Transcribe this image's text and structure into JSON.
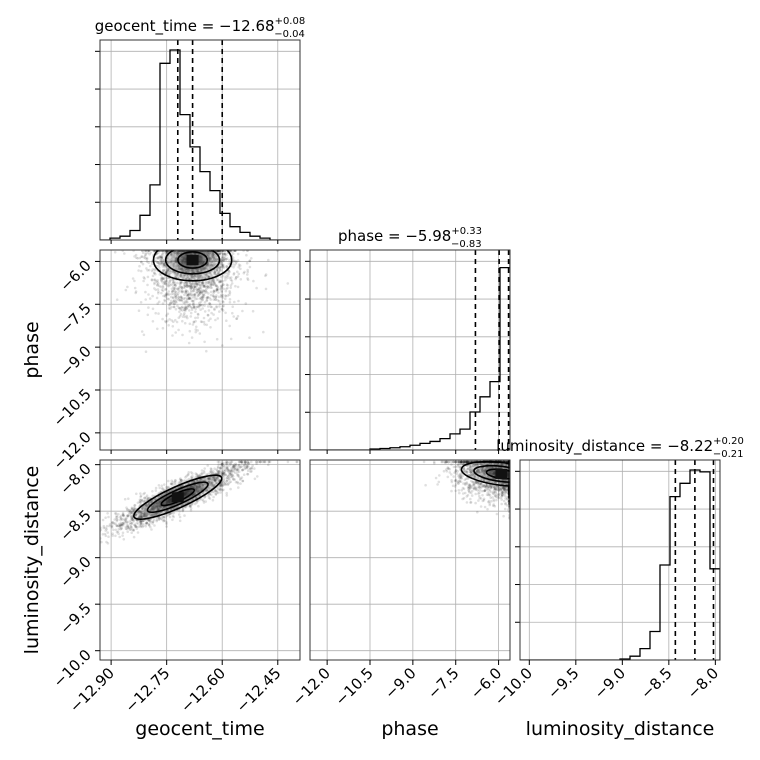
{
  "chart_data": {
    "type": "corner",
    "parameters": [
      {
        "name": "geocent_time",
        "label": "geocent_time",
        "range": [
          -12.93,
          -12.39
        ],
        "ticks": [
          -12.9,
          -12.75,
          -12.6,
          -12.45
        ],
        "tick_labels": [
          "−12.90",
          "−12.75",
          "−12.60",
          "−12.45"
        ],
        "title_main": "geocent_time = −12.68",
        "title_sup": "+0.08",
        "title_sub": "−0.04",
        "quantiles": [
          -12.72,
          -12.68,
          -12.6
        ],
        "hist_edges": [
          -12.93,
          -12.903,
          -12.876,
          -12.849,
          -12.822,
          -12.795,
          -12.768,
          -12.741,
          -12.714,
          -12.687,
          -12.66,
          -12.633,
          -12.606,
          -12.579,
          -12.552,
          -12.525,
          -12.498,
          -12.471,
          -12.444,
          -12.417,
          -12.39
        ],
        "hist_counts": [
          0,
          0.01,
          0.02,
          0.05,
          0.13,
          0.29,
          0.93,
          1.0,
          0.66,
          0.49,
          0.36,
          0.26,
          0.14,
          0.07,
          0.04,
          0.02,
          0.01,
          0,
          0,
          0
        ]
      },
      {
        "name": "phase",
        "label": "phase",
        "range": [
          -12.6,
          -5.6
        ],
        "ticks": [
          -12.0,
          -10.5,
          -9.0,
          -7.5,
          -6.0
        ],
        "tick_labels": [
          "−12.0",
          "−10.5",
          "−9.0",
          "−7.5",
          "−6.0"
        ],
        "title_main": "phase = −5.98",
        "title_sup": "+0.33",
        "title_sub": "−0.83",
        "quantiles": [
          -6.81,
          -5.98,
          -5.65
        ],
        "hist_edges": [
          -12.6,
          -12.25,
          -11.9,
          -11.55,
          -11.2,
          -10.85,
          -10.5,
          -10.15,
          -9.8,
          -9.45,
          -9.1,
          -8.75,
          -8.4,
          -8.05,
          -7.7,
          -7.35,
          -7.0,
          -6.65,
          -6.3,
          -5.95,
          -5.6
        ],
        "hist_counts": [
          0,
          0,
          0,
          0,
          0,
          0,
          0.005,
          0.008,
          0.012,
          0.017,
          0.025,
          0.035,
          0.045,
          0.06,
          0.085,
          0.11,
          0.2,
          0.28,
          0.36,
          0.96,
          1.0
        ]
      },
      {
        "name": "luminosity_distance",
        "label": "luminosity_distance",
        "range": [
          -10.1,
          -7.95
        ],
        "ticks": [
          -10.0,
          -9.5,
          -9.0,
          -8.5,
          -8.0
        ],
        "tick_labels": [
          "−10.0",
          "−9.5",
          "−9.0",
          "−8.5",
          "−8.0"
        ],
        "title_main": "luminosity_distance = −8.22",
        "title_sup": "+0.20",
        "title_sub": "−0.21",
        "quantiles": [
          -8.43,
          -8.22,
          -8.02
        ],
        "hist_edges": [
          -10.1,
          -9.9925,
          -9.885,
          -9.7775,
          -9.67,
          -9.5625,
          -9.455,
          -9.3475,
          -9.24,
          -9.1325,
          -9.025,
          -8.9175,
          -8.81,
          -8.7025,
          -8.595,
          -8.4875,
          -8.38,
          -8.2725,
          -8.165,
          -8.0575,
          -7.95
        ],
        "hist_counts": [
          0,
          0,
          0,
          0,
          0,
          0,
          0,
          0,
          0,
          0,
          0.005,
          0.02,
          0.06,
          0.15,
          0.5,
          0.86,
          0.93,
          1.0,
          0.99,
          0.48
        ]
      }
    ],
    "pairs": [
      {
        "x": "geocent_time",
        "y": "phase",
        "mode": [
          -12.68,
          -5.95
        ],
        "spread": [
          0.06,
          0.9
        ],
        "correlation": 0.0
      },
      {
        "x": "geocent_time",
        "y": "luminosity_distance",
        "mode": [
          -12.72,
          -8.35
        ],
        "spread": [
          0.09,
          0.18
        ],
        "correlation": 0.9
      },
      {
        "x": "phase",
        "y": "luminosity_distance",
        "mode": [
          -5.9,
          -8.1
        ],
        "spread": [
          0.8,
          0.15
        ],
        "correlation": -0.2
      }
    ],
    "grid": true
  }
}
